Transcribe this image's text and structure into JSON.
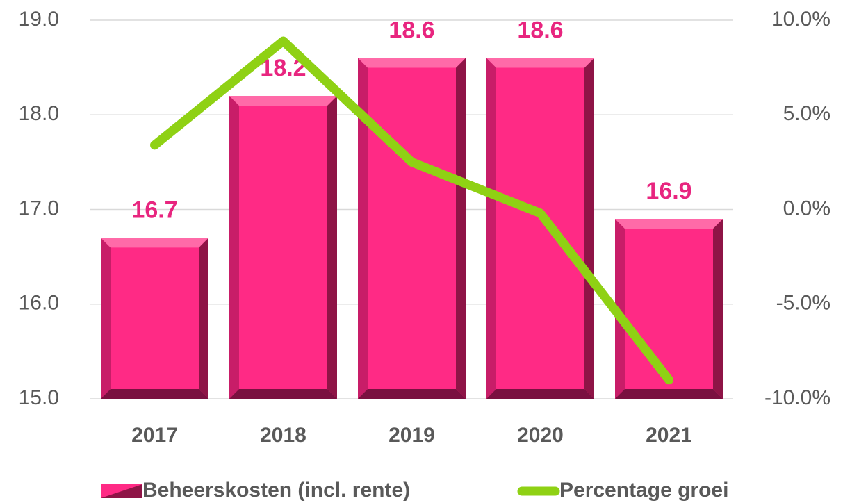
{
  "chart_data": {
    "type": "bar",
    "categories": [
      "2017",
      "2018",
      "2019",
      "2020",
      "2021"
    ],
    "series": [
      {
        "name": "Beheerskosten (incl. rente)",
        "type": "bar",
        "color": "#ff2a85",
        "values": [
          16.7,
          18.2,
          18.6,
          18.6,
          16.9
        ]
      },
      {
        "name": "Percentage groei",
        "type": "line",
        "color": "#8fd114",
        "axis": "y2",
        "values": [
          3.4,
          8.9,
          2.5,
          -0.2,
          -9.0
        ]
      }
    ],
    "ylim": [
      15,
      19
    ],
    "yticks": [
      {
        "value": 15,
        "label": "15.0"
      },
      {
        "value": 16,
        "label": "16.0"
      },
      {
        "value": 17,
        "label": "17.0"
      },
      {
        "value": 18,
        "label": "18.0"
      },
      {
        "value": 19,
        "label": "19.0"
      }
    ],
    "y2lim": [
      -10,
      10
    ],
    "y2ticks": [
      {
        "value": -10,
        "label": "-10.0%"
      },
      {
        "value": -5,
        "label": "-5.0%"
      },
      {
        "value": 0,
        "label": "0.0%"
      },
      {
        "value": 5,
        "label": "5.0%"
      },
      {
        "value": 10,
        "label": "10.0%"
      }
    ],
    "grid": true,
    "legend": "bottom"
  }
}
